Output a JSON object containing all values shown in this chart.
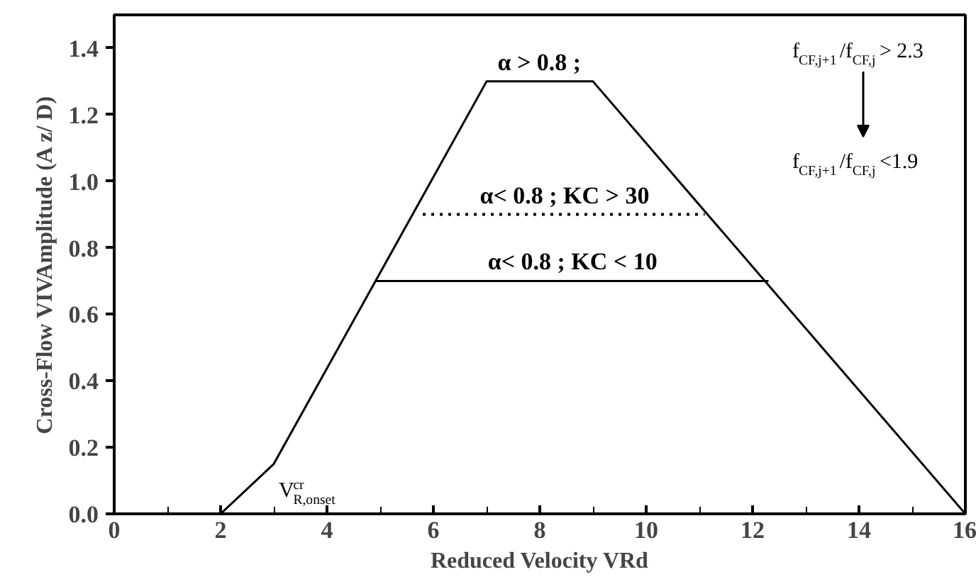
{
  "chart_data": {
    "type": "line",
    "xlabel": "Reduced Velocity VRd",
    "ylabel": "Cross-Flow VIVAmplitude (A z/ D)",
    "xlim": [
      0,
      16
    ],
    "ylim": [
      0,
      1.5
    ],
    "xticks": [
      0,
      {
        "value": 1,
        "label": null
      },
      2,
      {
        "value": 3,
        "label": null
      },
      4,
      {
        "value": 5,
        "label": null
      },
      6,
      {
        "value": 7,
        "label": null
      },
      8,
      {
        "value": 9,
        "label": null
      },
      10,
      {
        "value": 11,
        "label": null
      },
      12,
      {
        "value": 13,
        "label": null
      },
      14,
      {
        "value": 15,
        "label": null
      },
      16
    ],
    "yticks": [
      {
        "value": 0,
        "label": "0.0"
      },
      0.2,
      0.4,
      0.6,
      0.8,
      {
        "value": 1,
        "label": "1.0"
      },
      1.2,
      1.4
    ],
    "grid": false,
    "marker": "none",
    "series": [
      {
        "name": "α > 0.8 ;",
        "color": "#000000",
        "line_style": "solid",
        "x": [
          2,
          3,
          7,
          9,
          16
        ],
        "values": [
          0,
          0.15,
          1.3,
          1.3,
          0
        ]
      },
      {
        "name": "α< 0.8 ; KC > 30",
        "color": "#000000",
        "line_style": "dotted",
        "x": [
          5.8,
          11.1
        ],
        "values": [
          0.9,
          0.9
        ]
      },
      {
        "name": "α< 0.8 ; KC < 10",
        "color": "#000000",
        "line_style": "solid",
        "x": [
          4.9,
          12.3
        ],
        "values": [
          0.7,
          0.7
        ]
      }
    ],
    "annotations": [
      "V$^{cr}$$_{R,onset}$",
      "f$_{CF,j+1}$/f$_{CF,j}$ > 2.3",
      "f$_{CF,j+1}$/f$_{CF,j}$ <1.9"
    ]
  }
}
